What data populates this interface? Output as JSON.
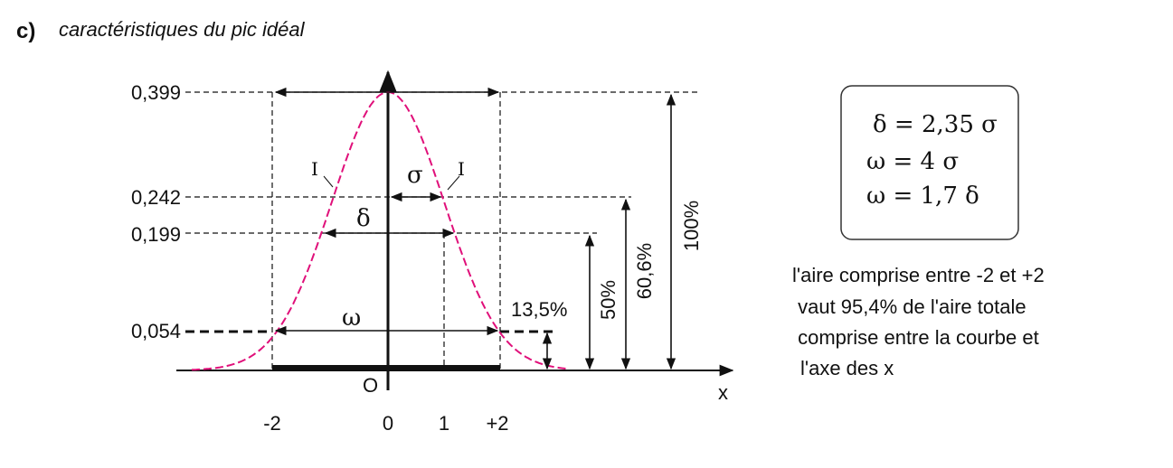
{
  "header": {
    "label": "c)",
    "title": "caractéristiques du pic idéal"
  },
  "diagram": {
    "y_labels": [
      "0,399",
      "0,242",
      "0,199",
      "0,054"
    ],
    "x_labels": [
      "-2",
      "0",
      "1",
      "+2"
    ],
    "origin": "O",
    "x_axis": "x",
    "inflection_labels": [
      "I",
      "I"
    ],
    "widths": [
      "σ",
      "δ",
      "ω"
    ],
    "heights": [
      "13,5%",
      "50%",
      "60,6%",
      "100%"
    ]
  },
  "formulas": [
    "δ = 2,35 σ",
    "ω = 4 σ",
    "ω = 1,7 δ"
  ],
  "note": [
    "l'aire comprise entre -2 et +2",
    " vaut 95,4% de l'aire totale",
    " comprise entre la courbe et",
    "l'axe des x"
  ]
}
